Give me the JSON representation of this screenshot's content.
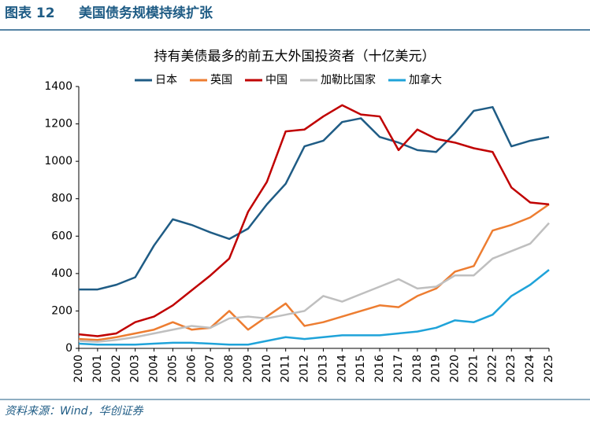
{
  "header": {
    "label": "图表 12",
    "title": "美国债务规模持续扩张"
  },
  "source": "资料来源：Wind，华创证券",
  "chart_data": {
    "type": "line",
    "title": "持有美债最多的前五大外国投资者（十亿美元）",
    "x": [
      2000,
      2001,
      2002,
      2003,
      2004,
      2005,
      2006,
      2007,
      2008,
      2009,
      2010,
      2011,
      2012,
      2013,
      2014,
      2015,
      2016,
      2017,
      2018,
      2019,
      2020,
      2021,
      2022,
      2023,
      2024,
      2025
    ],
    "xlim": [
      2000,
      2025
    ],
    "xticks": [
      2000,
      2001,
      2002,
      2003,
      2004,
      2005,
      2006,
      2007,
      2008,
      2009,
      2010,
      2011,
      2012,
      2013,
      2014,
      2015,
      2016,
      2017,
      2018,
      2019,
      2020,
      2021,
      2022,
      2023,
      2024,
      2025
    ],
    "ylim": [
      0,
      1400
    ],
    "yticks": [
      0,
      200,
      400,
      600,
      800,
      1000,
      1200,
      1400
    ],
    "grid": false,
    "legend": "top",
    "series": [
      {
        "name": "日本",
        "color": "#1f5c85",
        "values": [
          315,
          315,
          340,
          380,
          550,
          690,
          660,
          620,
          585,
          640,
          770,
          880,
          1080,
          1110,
          1210,
          1230,
          1130,
          1100,
          1060,
          1050,
          1150,
          1270,
          1290,
          1080,
          1110,
          1130
        ]
      },
      {
        "name": "英国",
        "color": "#ed7d31",
        "values": [
          50,
          45,
          60,
          80,
          100,
          140,
          100,
          110,
          200,
          100,
          170,
          240,
          120,
          140,
          170,
          200,
          230,
          220,
          280,
          320,
          410,
          440,
          630,
          660,
          700,
          770
        ]
      },
      {
        "name": "中国",
        "color": "#c00000",
        "values": [
          75,
          65,
          80,
          140,
          170,
          230,
          310,
          390,
          480,
          730,
          890,
          1160,
          1170,
          1240,
          1300,
          1250,
          1240,
          1060,
          1170,
          1120,
          1100,
          1070,
          1050,
          860,
          780,
          770
        ]
      },
      {
        "name": "加勒比国家",
        "color": "#bfbfbf",
        "values": [
          40,
          35,
          45,
          60,
          80,
          100,
          120,
          110,
          160,
          170,
          160,
          180,
          200,
          280,
          250,
          290,
          330,
          370,
          320,
          330,
          390,
          390,
          480,
          520,
          560,
          670
        ]
      },
      {
        "name": "加拿大",
        "color": "#1fa3d9",
        "values": [
          25,
          20,
          20,
          20,
          25,
          30,
          30,
          25,
          20,
          20,
          40,
          60,
          50,
          60,
          70,
          70,
          70,
          80,
          90,
          110,
          150,
          140,
          180,
          280,
          340,
          420
        ]
      }
    ]
  }
}
